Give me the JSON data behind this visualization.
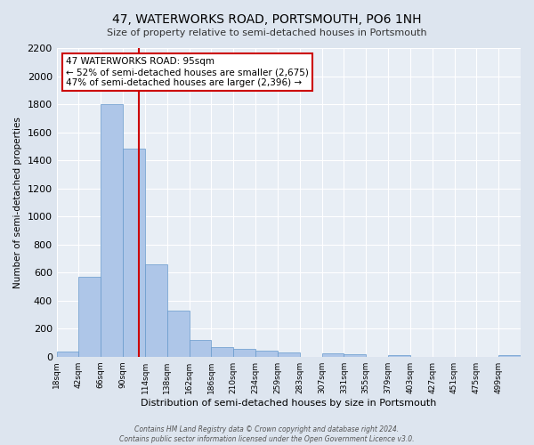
{
  "title": "47, WATERWORKS ROAD, PORTSMOUTH, PO6 1NH",
  "subtitle": "Size of property relative to semi-detached houses in Portsmouth",
  "xlabel": "Distribution of semi-detached houses by size in Portsmouth",
  "ylabel": "Number of semi-detached properties",
  "bar_labels": [
    "18sqm",
    "42sqm",
    "66sqm",
    "90sqm",
    "114sqm",
    "138sqm",
    "162sqm",
    "186sqm",
    "210sqm",
    "234sqm",
    "259sqm",
    "283sqm",
    "307sqm",
    "331sqm",
    "355sqm",
    "379sqm",
    "403sqm",
    "427sqm",
    "451sqm",
    "475sqm",
    "499sqm"
  ],
  "bar_values": [
    35,
    570,
    1800,
    1480,
    660,
    325,
    120,
    65,
    55,
    40,
    30,
    0,
    25,
    15,
    0,
    10,
    0,
    0,
    0,
    0,
    10
  ],
  "bar_color": "#aec6e8",
  "bar_edge_color": "#6699cc",
  "vline_x": 95,
  "vline_color": "#cc0000",
  "ylim": [
    0,
    2200
  ],
  "yticks": [
    0,
    200,
    400,
    600,
    800,
    1000,
    1200,
    1400,
    1600,
    1800,
    2000,
    2200
  ],
  "annotation_line1": "47 WATERWORKS ROAD: 95sqm",
  "annotation_line2": "← 52% of semi-detached houses are smaller (2,675)",
  "annotation_line3": "47% of semi-detached houses are larger (2,396) →",
  "annotation_box_color": "#ffffff",
  "annotation_border_color": "#cc0000",
  "footer1": "Contains HM Land Registry data © Crown copyright and database right 2024.",
  "footer2": "Contains public sector information licensed under the Open Government Licence v3.0.",
  "bg_color": "#dde5ef",
  "plot_bg_color": "#e8eef5",
  "grid_color": "#ffffff",
  "title_fontsize": 10,
  "subtitle_fontsize": 8,
  "xlabel_fontsize": 8,
  "ylabel_fontsize": 7.5,
  "ytick_fontsize": 8,
  "xtick_fontsize": 6.5,
  "annotation_fontsize": 7.5
}
